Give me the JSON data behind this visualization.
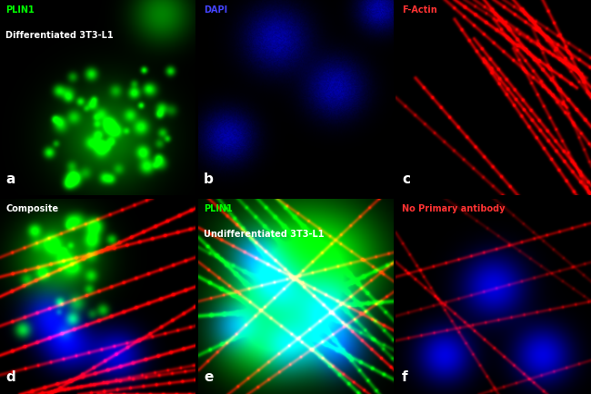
{
  "figure_size": [
    6.5,
    4.34
  ],
  "dpi": 100,
  "background_color": "#000000",
  "panel_label_color": "#ffffff",
  "panel_label_fontsize": 11,
  "panels": [
    {
      "id": "a",
      "title_lines": [
        "PLIN1",
        "Differentiated 3T3-L1"
      ],
      "title_colors": [
        "#00ff00",
        "#ffffff"
      ],
      "title_fontsize": 7
    },
    {
      "id": "b",
      "title_lines": [
        "DAPI"
      ],
      "title_colors": [
        "#4444ff"
      ],
      "title_fontsize": 7
    },
    {
      "id": "c",
      "title_lines": [
        "F-Actin"
      ],
      "title_colors": [
        "#ff3333"
      ],
      "title_fontsize": 7
    },
    {
      "id": "d",
      "title_lines": [
        "Composite"
      ],
      "title_colors": [
        "#ffffff"
      ],
      "title_fontsize": 7
    },
    {
      "id": "e",
      "title_lines": [
        "PLIN1",
        "Undifferentiated 3T3-L1"
      ],
      "title_colors": [
        "#00ff00",
        "#ffffff"
      ],
      "title_fontsize": 7
    },
    {
      "id": "f",
      "title_lines": [
        "No Primary antibody"
      ],
      "title_colors": [
        "#ff3333"
      ],
      "title_fontsize": 7
    }
  ]
}
